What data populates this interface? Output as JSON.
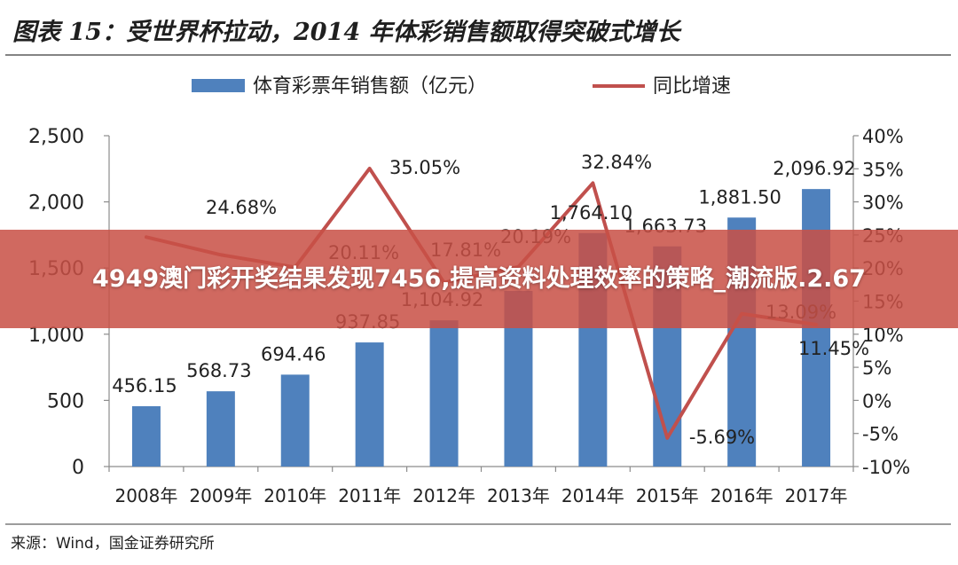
{
  "chart_data": {
    "type": "bar",
    "title": "图表 15：受世界杯拉动，2014 年体彩销售额取得突破式增长",
    "categories": [
      "2008年",
      "2009年",
      "2010年",
      "2011年",
      "2012年",
      "2013年",
      "2014年",
      "2015年",
      "2016年",
      "2017年"
    ],
    "series": [
      {
        "name": "体育彩票年销售额（亿元）",
        "type": "bar",
        "axis": "left",
        "values": [
          456.15,
          568.73,
          694.46,
          937.85,
          1104.92,
          1327.0,
          1764.1,
          1663.73,
          1881.5,
          2096.92
        ],
        "labels": [
          "456.15",
          "568.73",
          "694.46",
          "937.85",
          "1,104.92",
          "",
          "1,764.10",
          "1,663.73",
          "1,881.50",
          "2,096.92"
        ]
      },
      {
        "name": "同比增速",
        "type": "line",
        "axis": "right",
        "values": [
          24.68,
          22.0,
          20.11,
          35.05,
          17.81,
          20.19,
          32.84,
          -5.69,
          13.09,
          11.45
        ],
        "labels": [
          "24.68%",
          "",
          "20.11%",
          "35.05%",
          "17.81%",
          "20.19%",
          "32.84%",
          "-5.69%",
          "13.09%",
          "11.45%"
        ]
      }
    ],
    "left_axis": {
      "ylim": [
        0,
        2500
      ],
      "ticks": [
        "0",
        "500",
        "1,000",
        "1,500",
        "2,000",
        "2,500"
      ]
    },
    "right_axis": {
      "ylim": [
        -10,
        40
      ],
      "ticks": [
        "-10%",
        "-5%",
        "0%",
        "5%",
        "10%",
        "15%",
        "20%",
        "25%",
        "30%",
        "35%",
        "40%"
      ]
    },
    "legend_position": "top-center",
    "grid": false,
    "source": "来源：Wind，国金证券研究所",
    "colors": {
      "bar": "#4f81bd",
      "line": "#c0504d",
      "title": "#1f1f1f"
    }
  },
  "overlay": {
    "text": "4949澳门彩开奖结果发现7456,提高资料处理效率的策略_潮流版.2.67",
    "color": "#c85046"
  }
}
